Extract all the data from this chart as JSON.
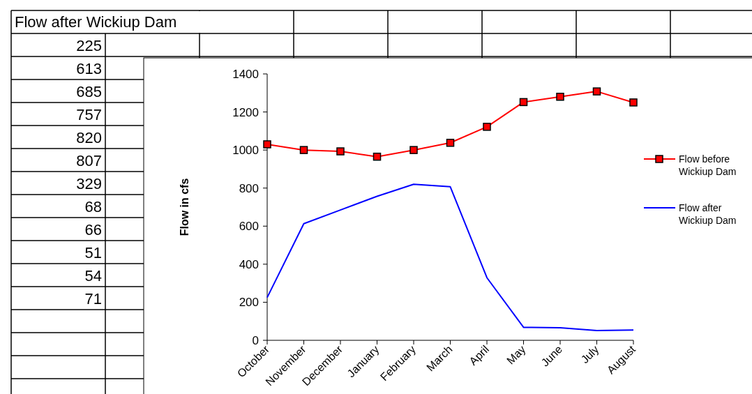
{
  "chart_data": [
    {
      "type": "other",
      "title": "Flow after Wickiup Dam",
      "annotations": [
        "225",
        "613",
        "685",
        "757",
        "820",
        "807",
        "329",
        "68",
        "66",
        "51",
        "54",
        "71"
      ]
    },
    {
      "type": "line",
      "ylabel": "Flow in cfs",
      "categories": [
        "October",
        "November",
        "December",
        "January",
        "February",
        "March",
        "April",
        "May",
        "June",
        "July",
        "August"
      ],
      "series": [
        {
          "name": "Flow before Wickiup Dam",
          "color": "#ff0000",
          "marker": "square",
          "values": [
            1030,
            1000,
            993,
            965,
            1000,
            1038,
            1122,
            1252,
            1280,
            1308,
            1250
          ]
        },
        {
          "name": "Flow after Wickiup Dam",
          "color": "#0000ff",
          "marker": "none",
          "values": [
            225,
            613,
            685,
            757,
            820,
            807,
            329,
            68,
            66,
            51,
            54
          ]
        }
      ],
      "ylim": [
        0,
        1400
      ],
      "yticks": [
        0,
        200,
        400,
        600,
        800,
        1000,
        1200,
        1400
      ],
      "grid": false,
      "legend": "right"
    }
  ]
}
